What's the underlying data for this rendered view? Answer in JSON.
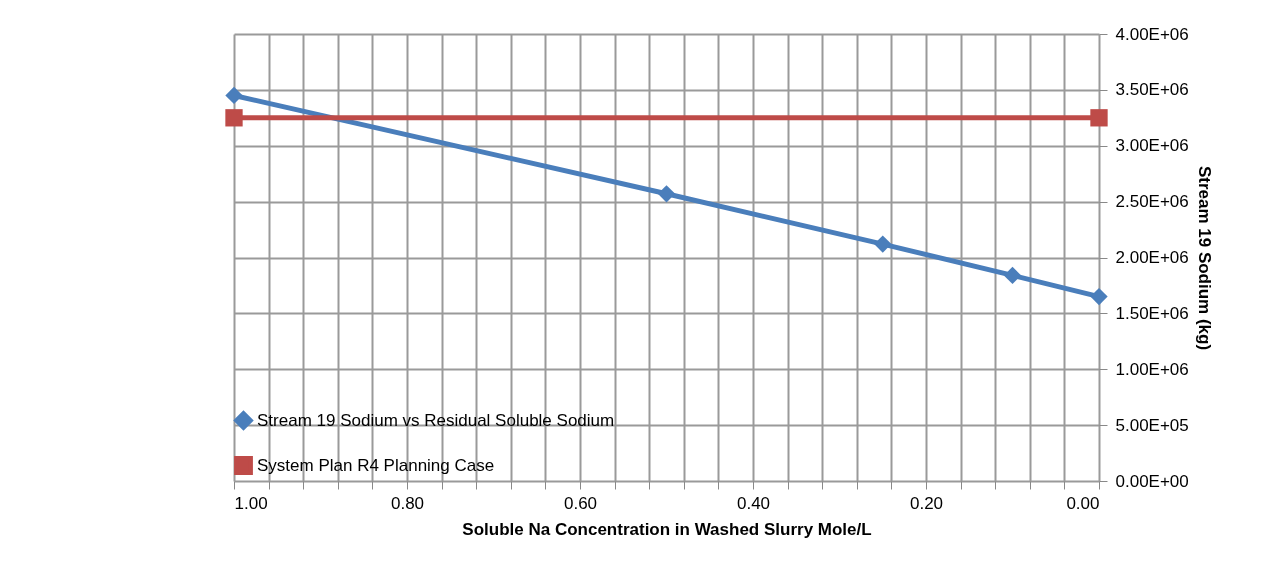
{
  "chart_data": {
    "type": "line",
    "xlabel": "Soluble Na Concentration in Washed Slurry Mole/L",
    "ylabel": "Stream 19 Sodium  (kg)",
    "xlim": [
      1,
      0
    ],
    "xticks": [
      {
        "value": 1,
        "label": "1.00"
      },
      {
        "value": 0.96,
        "label": null
      },
      {
        "value": 0.92,
        "label": null
      },
      {
        "value": 0.88,
        "label": null
      },
      {
        "value": 0.84,
        "label": null
      },
      {
        "value": 0.8,
        "label": "0.80"
      },
      {
        "value": 0.76,
        "label": null
      },
      {
        "value": 0.72,
        "label": null
      },
      {
        "value": 0.68,
        "label": null
      },
      {
        "value": 0.64,
        "label": null
      },
      {
        "value": 0.6,
        "label": "0.60"
      },
      {
        "value": 0.56,
        "label": null
      },
      {
        "value": 0.52,
        "label": null
      },
      {
        "value": 0.48,
        "label": null
      },
      {
        "value": 0.44,
        "label": null
      },
      {
        "value": 0.4,
        "label": "0.40"
      },
      {
        "value": 0.36,
        "label": null
      },
      {
        "value": 0.32,
        "label": null
      },
      {
        "value": 0.28,
        "label": null
      },
      {
        "value": 0.24,
        "label": null
      },
      {
        "value": 0.2,
        "label": "0.20"
      },
      {
        "value": 0.16,
        "label": null
      },
      {
        "value": 0.12,
        "label": null
      },
      {
        "value": 0.08,
        "label": null
      },
      {
        "value": 0.04,
        "label": null
      },
      {
        "value": 0,
        "label": "0.00"
      }
    ],
    "ylim": [
      0,
      4000000
    ],
    "yticks": [
      {
        "value": 0,
        "label": "0.00E+00"
      },
      {
        "value": 500000,
        "label": "5.00E+05"
      },
      {
        "value": 1000000,
        "label": "1.00E+06"
      },
      {
        "value": 1500000,
        "label": "1.50E+06"
      },
      {
        "value": 2000000,
        "label": "2.00E+06"
      },
      {
        "value": 2500000,
        "label": "2.50E+06"
      },
      {
        "value": 3000000,
        "label": "3.00E+06"
      },
      {
        "value": 3500000,
        "label": "3.50E+06"
      },
      {
        "value": 4000000,
        "label": "4.00E+06"
      }
    ],
    "grid": true,
    "legend": "bottom left",
    "line_style": "solid",
    "series": [
      {
        "name": "Stream 19 Sodium vs Residual Soluble Sodium",
        "color": "#4a7ebb",
        "marker": "diamond",
        "x": [
          1,
          0.5,
          0.25,
          0.1,
          0
        ],
        "values": [
          3450000,
          2570000,
          2120000,
          1840000,
          1650000
        ]
      },
      {
        "name": "System Plan R4  Planning Case",
        "color": "#be4b48",
        "marker": "square",
        "x": [
          1,
          0
        ],
        "values": [
          3250000,
          3250000
        ]
      }
    ]
  }
}
